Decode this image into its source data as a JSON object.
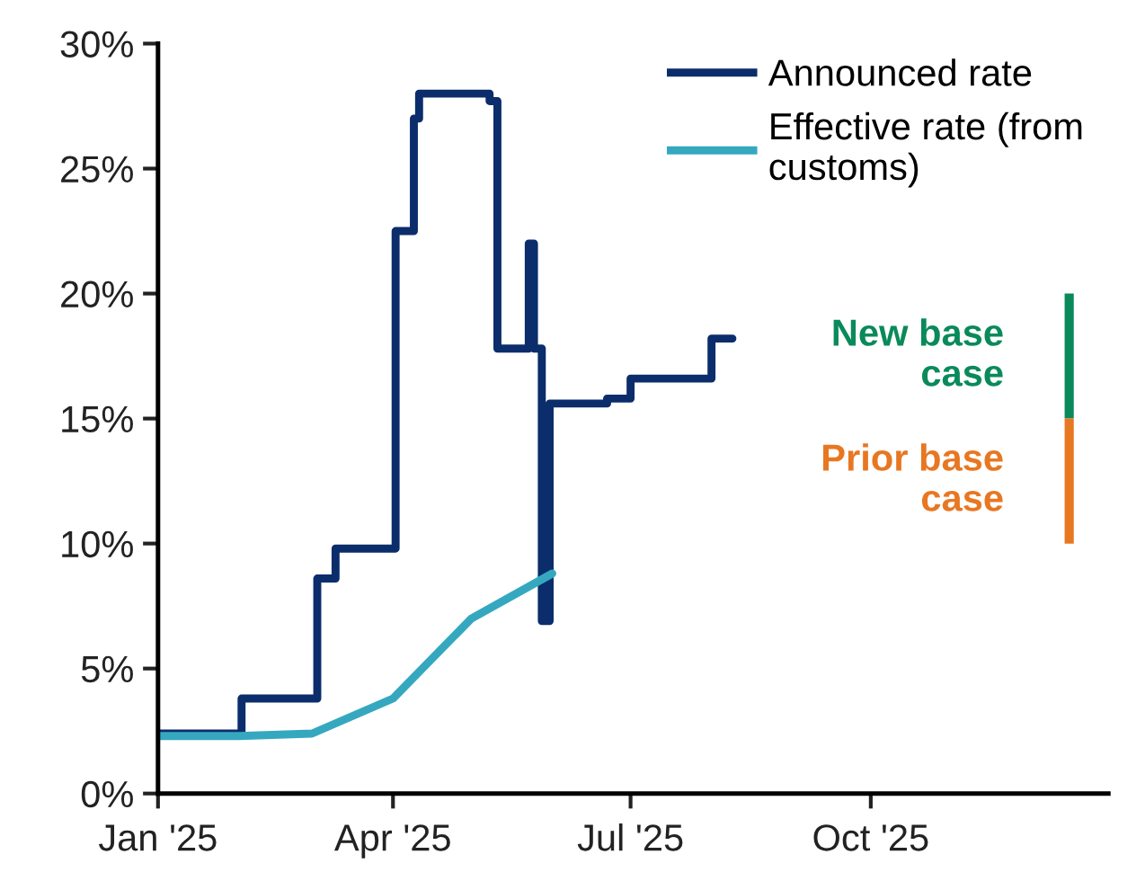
{
  "chart_data": {
    "type": "step",
    "series": [
      {
        "name": "Announced rate",
        "color": "#0b2d6b",
        "x": [
          "2025-01-01",
          "2025-02-02",
          "2025-03-03",
          "2025-03-10",
          "2025-04-02",
          "2025-04-09",
          "2025-04-11",
          "2025-05-08",
          "2025-05-11",
          "2025-05-23",
          "2025-05-25",
          "2025-05-28",
          "2025-05-31",
          "2025-06-22",
          "2025-07-01",
          "2025-08-01",
          "2025-08-09"
        ],
        "values": [
          2.4,
          3.8,
          8.6,
          9.8,
          22.5,
          27.0,
          28.0,
          27.7,
          17.8,
          22.0,
          17.8,
          6.9,
          15.6,
          15.8,
          16.6,
          18.2,
          18.2
        ]
      },
      {
        "name": "Effective rate (from customs)",
        "color": "#35a8c0",
        "type": "line",
        "x": [
          "2025-01-01",
          "2025-02-01",
          "2025-03-01",
          "2025-04-01",
          "2025-05-01",
          "2025-06-01"
        ],
        "values": [
          2.3,
          2.3,
          2.4,
          3.8,
          7.0,
          8.8
        ]
      },
      {
        "name": "New base case",
        "color": "#0a8a5a",
        "type": "bar",
        "x": [
          "2025-12-16"
        ],
        "base": [
          15
        ],
        "values": [
          5
        ]
      },
      {
        "name": "Prior base case",
        "color": "#e87722",
        "type": "bar",
        "x": [
          "2025-12-16"
        ],
        "base": [
          10
        ],
        "values": [
          5
        ]
      }
    ],
    "xlim": [
      "2025-01-01",
      "2025-12-31"
    ],
    "xticks": [
      {
        "value": "2025-01-01",
        "label": "Jan '25"
      },
      {
        "value": "2025-04-01",
        "label": "Apr '25"
      },
      {
        "value": "2025-07-01",
        "label": "Jul '25"
      },
      {
        "value": "2025-10-01",
        "label": "Oct '25"
      }
    ],
    "ylim": [
      0,
      30
    ],
    "yticks": [
      {
        "value": 0,
        "label": "0%"
      },
      {
        "value": 5,
        "label": "5%"
      },
      {
        "value": 10,
        "label": "10%"
      },
      {
        "value": 15,
        "label": "15%"
      },
      {
        "value": 20,
        "label": "20%"
      },
      {
        "value": 25,
        "label": "25%"
      },
      {
        "value": 30,
        "label": "30%"
      }
    ],
    "legend": "top right",
    "grid": false,
    "line_style": "solid",
    "marker": "none"
  }
}
